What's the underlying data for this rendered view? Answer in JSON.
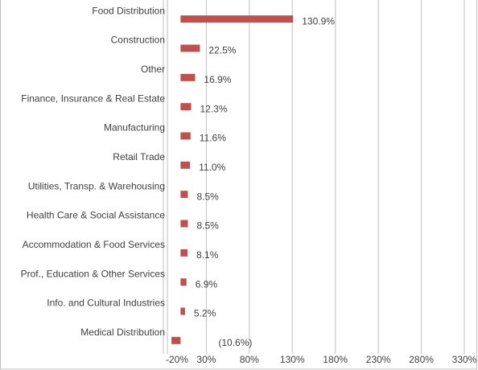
{
  "chart_data": {
    "type": "bar",
    "orientation": "horizontal",
    "categories": [
      "Food Distribution",
      "Construction",
      "Other",
      "Finance, Insurance & Real Estate",
      "Manufacturing",
      "Retail Trade",
      "Utilities, Transp. & Warehousing",
      "Health Care & Social Assistance",
      "Accommodation & Food Services",
      "Prof., Education & Other Services",
      "Info. and Cultural Industries",
      "Medical Distribution"
    ],
    "values": [
      130.9,
      22.5,
      16.9,
      12.3,
      11.6,
      11.0,
      8.5,
      8.5,
      8.1,
      6.9,
      5.2,
      -10.6
    ],
    "value_labels": [
      "130.9%",
      "22.5%",
      "16.9%",
      "12.3%",
      "11.6%",
      "11.0%",
      "8.5%",
      "8.5%",
      "8.1%",
      "6.9%",
      "5.2%",
      "(10.6%)"
    ],
    "color": "#c0504d",
    "xlim": [
      -20,
      330
    ],
    "xticks": [
      {
        "value": -20,
        "label": "-20%"
      },
      {
        "value": 30,
        "label": "30%"
      },
      {
        "value": 80,
        "label": "80%"
      },
      {
        "value": 130,
        "label": "130%"
      },
      {
        "value": 180,
        "label": "180%"
      },
      {
        "value": 230,
        "label": "230%"
      },
      {
        "value": 280,
        "label": "280%"
      },
      {
        "value": 330,
        "label": "330%"
      }
    ],
    "grid": true
  }
}
